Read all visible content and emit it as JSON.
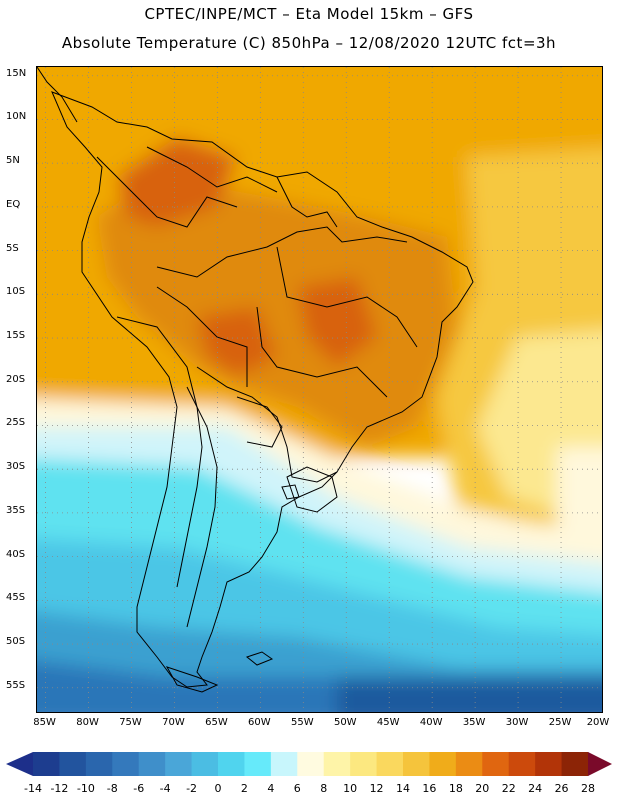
{
  "title": {
    "line1": "CPTEC/INPE/MCT –  Eta Model 15km – GFS",
    "line2": "Absolute Temperature (C) 850hPa – 12/08/2020 12UTC fct=3h"
  },
  "map": {
    "lat_labels": [
      "15N",
      "10N",
      "5N",
      "EQ",
      "5S",
      "10S",
      "15S",
      "20S",
      "25S",
      "30S",
      "35S",
      "40S",
      "45S",
      "50S",
      "55S"
    ],
    "lon_labels": [
      "85W",
      "80W",
      "75W",
      "70W",
      "65W",
      "60W",
      "55W",
      "50W",
      "45W",
      "40W",
      "35W",
      "30W",
      "25W",
      "20W"
    ],
    "lat_values": [
      15,
      10,
      5,
      0,
      -5,
      -10,
      -15,
      -20,
      -25,
      -30,
      -35,
      -40,
      -45,
      -50,
      -55
    ],
    "lon_values": [
      -85,
      -80,
      -75,
      -70,
      -65,
      -60,
      -55,
      -50,
      -45,
      -40,
      -35,
      -30,
      -25,
      -20
    ],
    "lat_range": [
      -58,
      16
    ],
    "lon_range": [
      -86,
      -20
    ],
    "colors": {
      "ocean_warm": "#f0a800",
      "land_hot": "#e08a10",
      "hot_core": "#d8620a",
      "mild": "#f6c840",
      "pale": "#fce890",
      "cream": "#fff8dc",
      "cyan_pale": "#d0f4fa",
      "cyan": "#5fe2f0",
      "sky": "#4cc6e6",
      "blue_mid": "#3aa0d0",
      "blue_deep": "#2a76b8",
      "navy": "#1e5a9e",
      "outline": "#000000",
      "grid": "#888888"
    }
  },
  "colorbar": {
    "labels": [
      "-14",
      "-12",
      "-10",
      "-8",
      "-6",
      "-4",
      "-2",
      "0",
      "2",
      "4",
      "6",
      "8",
      "10",
      "12",
      "14",
      "16",
      "18",
      "20",
      "22",
      "24",
      "26",
      "28"
    ],
    "colors": [
      "#1d3d8f",
      "#22549e",
      "#2a66ad",
      "#3479bc",
      "#3f8fca",
      "#4aa6d8",
      "#4bbde3",
      "#50d4ee",
      "#66eafa",
      "#c8f6fc",
      "#fffbe0",
      "#fef4a8",
      "#fce880",
      "#fad85e",
      "#f5c43c",
      "#f0ac1a",
      "#eb8c14",
      "#e06610",
      "#cc4a0c",
      "#b23408",
      "#8c2406"
    ],
    "low_color": "#1d2f8a",
    "high_color": "#7a0a2a"
  }
}
